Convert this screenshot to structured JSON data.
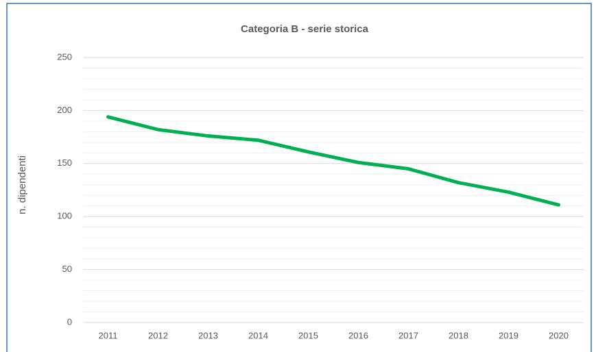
{
  "chart_data": {
    "type": "line",
    "title": "Categoria B - serie storica",
    "y_label": "n. dipendenti",
    "categories": [
      "2011",
      "2012",
      "2013",
      "2014",
      "2015",
      "2016",
      "2017",
      "2018",
      "2019",
      "2020"
    ],
    "series": [
      {
        "name": "Categoria B",
        "color": "#00b050",
        "values": [
          194,
          182,
          176,
          172,
          161,
          151,
          145,
          132,
          123,
          111
        ]
      }
    ],
    "ylim": [
      0,
      250
    ],
    "yticks": [
      0,
      50,
      100,
      150,
      200,
      250
    ],
    "minor_yticks": [
      10,
      20,
      30,
      40,
      60,
      70,
      80,
      90,
      110,
      120,
      130,
      140,
      160,
      170,
      180,
      190,
      210,
      220,
      230,
      240
    ],
    "grid": true
  }
}
